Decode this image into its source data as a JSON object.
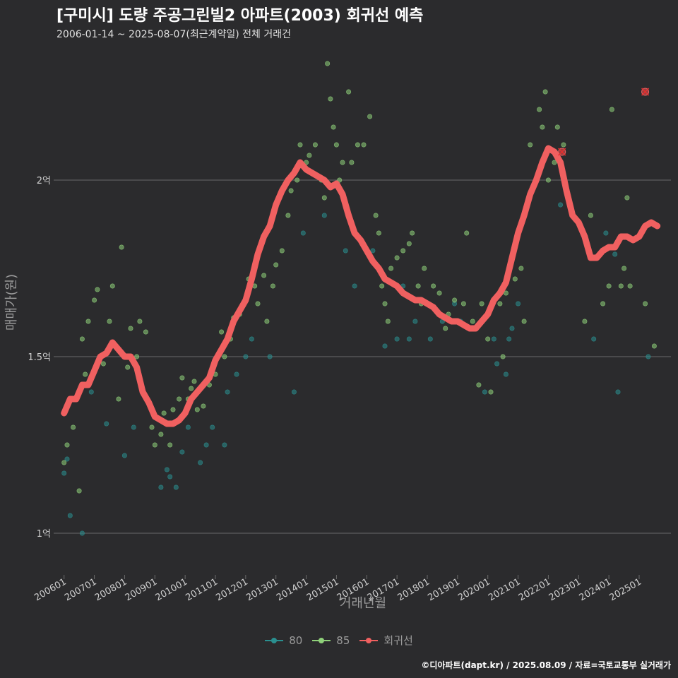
{
  "header": {
    "title": "[구미시] 도량 주공그린빌2 아파트(2003) 회귀선 예측",
    "subtitle": "2006-01-14 ~ 2025-08-07(최근계약일) 전체 거래건"
  },
  "footer": {
    "credit": "©디아파트(dapt.kr) / 2025.08.09 / 자료=국토교통부 실거래가"
  },
  "legend": {
    "items": [
      {
        "label": "80",
        "color": "#2a8f8f"
      },
      {
        "label": "85",
        "color": "#8fd17a"
      },
      {
        "label": "회귀선",
        "color": "#f06060"
      }
    ]
  },
  "colors": {
    "background": "#2b2b2d",
    "grid": "#6a6a6a",
    "axis_text": "#cfcfcf",
    "regression": "#f06060",
    "s80": "#2a8f8f",
    "s85": "#8fd17a",
    "outlier": "#e03030"
  },
  "chart_data": {
    "type": "scatter",
    "title": "[구미시] 도량 주공그린빌2 아파트(2003) 회귀선 예측",
    "xlabel": "거래년월",
    "ylabel": "매매가(원)",
    "xlim": [
      2005.75,
      2026.05
    ],
    "ylim": [
      0.93,
      2.35
    ],
    "x_ticks": [
      2006,
      2007,
      2008,
      2009,
      2010,
      2011,
      2012,
      2013,
      2014,
      2015,
      2016,
      2017,
      2018,
      2019,
      2020,
      2021,
      2022,
      2023,
      2024,
      2025
    ],
    "x_tick_labels": [
      "200601",
      "200701",
      "200801",
      "200901",
      "201001",
      "201101",
      "201201",
      "201301",
      "201401",
      "201501",
      "201601",
      "201701",
      "201801",
      "201901",
      "202001",
      "202101",
      "202201",
      "202301",
      "202401",
      "202501"
    ],
    "y_ticks": [
      1.0,
      1.5,
      2.0
    ],
    "y_tick_labels": [
      "1억",
      "1.5억",
      "2억"
    ],
    "grid": true,
    "legend_position": "bottom",
    "series": [
      {
        "name": "80",
        "points": [
          [
            2006.0,
            1.17
          ],
          [
            2006.1,
            1.21
          ],
          [
            2006.2,
            1.05
          ],
          [
            2006.6,
            1.0
          ],
          [
            2006.9,
            1.4
          ],
          [
            2007.4,
            1.31
          ],
          [
            2008.0,
            1.22
          ],
          [
            2008.3,
            1.3
          ],
          [
            2009.2,
            1.13
          ],
          [
            2009.4,
            1.18
          ],
          [
            2009.5,
            1.16
          ],
          [
            2009.7,
            1.13
          ],
          [
            2009.9,
            1.23
          ],
          [
            2010.1,
            1.3
          ],
          [
            2010.5,
            1.2
          ],
          [
            2010.7,
            1.25
          ],
          [
            2010.9,
            1.3
          ],
          [
            2011.3,
            1.25
          ],
          [
            2011.4,
            1.4
          ],
          [
            2011.7,
            1.45
          ],
          [
            2012.0,
            1.5
          ],
          [
            2012.2,
            1.55
          ],
          [
            2012.8,
            1.5
          ],
          [
            2013.6,
            1.4
          ],
          [
            2013.9,
            1.85
          ],
          [
            2014.6,
            1.9
          ],
          [
            2015.3,
            1.8
          ],
          [
            2015.6,
            1.7
          ],
          [
            2016.2,
            1.8
          ],
          [
            2016.6,
            1.53
          ],
          [
            2017.0,
            1.55
          ],
          [
            2017.2,
            1.7
          ],
          [
            2017.4,
            1.55
          ],
          [
            2017.6,
            1.6
          ],
          [
            2018.1,
            1.55
          ],
          [
            2018.5,
            1.6
          ],
          [
            2018.9,
            1.65
          ],
          [
            2019.1,
            1.6
          ],
          [
            2019.9,
            1.4
          ],
          [
            2020.2,
            1.55
          ],
          [
            2020.3,
            1.48
          ],
          [
            2020.6,
            1.45
          ],
          [
            2020.7,
            1.55
          ],
          [
            2020.8,
            1.58
          ],
          [
            2021.0,
            1.65
          ],
          [
            2022.4,
            1.93
          ],
          [
            2023.5,
            1.55
          ],
          [
            2023.9,
            1.85
          ],
          [
            2024.2,
            1.79
          ],
          [
            2024.3,
            1.4
          ],
          [
            2025.3,
            1.5
          ]
        ]
      },
      {
        "name": "85",
        "points": [
          [
            2006.0,
            1.2
          ],
          [
            2006.1,
            1.25
          ],
          [
            2006.3,
            1.3
          ],
          [
            2006.5,
            1.12
          ],
          [
            2006.6,
            1.55
          ],
          [
            2006.7,
            1.45
          ],
          [
            2006.8,
            1.6
          ],
          [
            2007.0,
            1.66
          ],
          [
            2007.1,
            1.69
          ],
          [
            2007.3,
            1.48
          ],
          [
            2007.5,
            1.6
          ],
          [
            2007.6,
            1.7
          ],
          [
            2007.8,
            1.38
          ],
          [
            2007.9,
            1.81
          ],
          [
            2008.1,
            1.47
          ],
          [
            2008.2,
            1.58
          ],
          [
            2008.4,
            1.5
          ],
          [
            2008.5,
            1.6
          ],
          [
            2008.7,
            1.57
          ],
          [
            2008.9,
            1.3
          ],
          [
            2009.0,
            1.25
          ],
          [
            2009.2,
            1.28
          ],
          [
            2009.3,
            1.34
          ],
          [
            2009.5,
            1.25
          ],
          [
            2009.6,
            1.35
          ],
          [
            2009.8,
            1.38
          ],
          [
            2009.9,
            1.44
          ],
          [
            2010.1,
            1.38
          ],
          [
            2010.2,
            1.41
          ],
          [
            2010.3,
            1.43
          ],
          [
            2010.4,
            1.35
          ],
          [
            2010.6,
            1.36
          ],
          [
            2010.8,
            1.42
          ],
          [
            2011.0,
            1.45
          ],
          [
            2011.2,
            1.57
          ],
          [
            2011.3,
            1.5
          ],
          [
            2011.5,
            1.55
          ],
          [
            2011.6,
            1.61
          ],
          [
            2011.8,
            1.62
          ],
          [
            2012.0,
            1.66
          ],
          [
            2012.1,
            1.72
          ],
          [
            2012.3,
            1.7
          ],
          [
            2012.4,
            1.65
          ],
          [
            2012.6,
            1.73
          ],
          [
            2012.7,
            1.6
          ],
          [
            2012.9,
            1.7
          ],
          [
            2013.0,
            1.76
          ],
          [
            2013.2,
            1.8
          ],
          [
            2013.4,
            1.9
          ],
          [
            2013.5,
            1.97
          ],
          [
            2013.7,
            2.0
          ],
          [
            2013.8,
            2.1
          ],
          [
            2014.0,
            2.05
          ],
          [
            2014.1,
            2.07
          ],
          [
            2014.3,
            2.1
          ],
          [
            2014.5,
            2.0
          ],
          [
            2014.6,
            1.95
          ],
          [
            2014.7,
            2.33
          ],
          [
            2014.8,
            2.23
          ],
          [
            2014.9,
            2.15
          ],
          [
            2015.0,
            2.1
          ],
          [
            2015.1,
            2.0
          ],
          [
            2015.2,
            2.05
          ],
          [
            2015.4,
            2.25
          ],
          [
            2015.5,
            2.05
          ],
          [
            2015.7,
            2.1
          ],
          [
            2015.9,
            2.1
          ],
          [
            2016.1,
            2.18
          ],
          [
            2016.3,
            1.9
          ],
          [
            2016.4,
            1.85
          ],
          [
            2016.5,
            1.7
          ],
          [
            2016.6,
            1.65
          ],
          [
            2016.7,
            1.6
          ],
          [
            2016.8,
            1.75
          ],
          [
            2017.0,
            1.78
          ],
          [
            2017.2,
            1.8
          ],
          [
            2017.4,
            1.82
          ],
          [
            2017.5,
            1.85
          ],
          [
            2017.7,
            1.7
          ],
          [
            2017.8,
            1.65
          ],
          [
            2017.9,
            1.75
          ],
          [
            2018.2,
            1.7
          ],
          [
            2018.4,
            1.68
          ],
          [
            2018.6,
            1.58
          ],
          [
            2018.7,
            1.62
          ],
          [
            2018.9,
            1.66
          ],
          [
            2019.2,
            1.65
          ],
          [
            2019.3,
            1.85
          ],
          [
            2019.5,
            1.6
          ],
          [
            2019.7,
            1.42
          ],
          [
            2019.8,
            1.65
          ],
          [
            2020.0,
            1.55
          ],
          [
            2020.1,
            1.4
          ],
          [
            2020.4,
            1.65
          ],
          [
            2020.5,
            1.5
          ],
          [
            2020.6,
            1.68
          ],
          [
            2020.9,
            1.72
          ],
          [
            2021.1,
            1.75
          ],
          [
            2021.2,
            1.6
          ],
          [
            2021.4,
            2.1
          ],
          [
            2021.6,
            2.0
          ],
          [
            2021.7,
            2.2
          ],
          [
            2021.8,
            2.15
          ],
          [
            2021.9,
            2.25
          ],
          [
            2022.0,
            2.0
          ],
          [
            2022.2,
            2.05
          ],
          [
            2022.3,
            2.15
          ],
          [
            2022.5,
            2.1
          ],
          [
            2022.8,
            1.9
          ],
          [
            2023.2,
            1.6
          ],
          [
            2023.4,
            1.9
          ],
          [
            2023.8,
            1.65
          ],
          [
            2024.0,
            1.7
          ],
          [
            2024.1,
            2.2
          ],
          [
            2024.4,
            1.7
          ],
          [
            2024.5,
            1.75
          ],
          [
            2024.6,
            1.95
          ],
          [
            2024.7,
            1.7
          ],
          [
            2025.2,
            1.65
          ],
          [
            2025.5,
            1.53
          ]
        ]
      }
    ],
    "regression": {
      "name": "회귀선",
      "points": [
        [
          2006.0,
          1.34
        ],
        [
          2006.2,
          1.38
        ],
        [
          2006.4,
          1.38
        ],
        [
          2006.6,
          1.42
        ],
        [
          2006.8,
          1.42
        ],
        [
          2007.0,
          1.46
        ],
        [
          2007.2,
          1.5
        ],
        [
          2007.4,
          1.51
        ],
        [
          2007.6,
          1.54
        ],
        [
          2007.8,
          1.52
        ],
        [
          2008.0,
          1.5
        ],
        [
          2008.2,
          1.5
        ],
        [
          2008.4,
          1.47
        ],
        [
          2008.6,
          1.4
        ],
        [
          2008.8,
          1.37
        ],
        [
          2009.0,
          1.33
        ],
        [
          2009.2,
          1.32
        ],
        [
          2009.4,
          1.31
        ],
        [
          2009.6,
          1.31
        ],
        [
          2009.8,
          1.32
        ],
        [
          2010.0,
          1.34
        ],
        [
          2010.2,
          1.38
        ],
        [
          2010.4,
          1.4
        ],
        [
          2010.6,
          1.42
        ],
        [
          2010.8,
          1.44
        ],
        [
          2011.0,
          1.49
        ],
        [
          2011.2,
          1.52
        ],
        [
          2011.4,
          1.55
        ],
        [
          2011.6,
          1.6
        ],
        [
          2011.8,
          1.63
        ],
        [
          2012.0,
          1.66
        ],
        [
          2012.2,
          1.72
        ],
        [
          2012.4,
          1.79
        ],
        [
          2012.6,
          1.84
        ],
        [
          2012.8,
          1.87
        ],
        [
          2013.0,
          1.93
        ],
        [
          2013.2,
          1.97
        ],
        [
          2013.4,
          2.0
        ],
        [
          2013.6,
          2.02
        ],
        [
          2013.8,
          2.05
        ],
        [
          2014.0,
          2.03
        ],
        [
          2014.2,
          2.02
        ],
        [
          2014.4,
          2.01
        ],
        [
          2014.6,
          2.0
        ],
        [
          2014.8,
          1.98
        ],
        [
          2015.0,
          1.99
        ],
        [
          2015.2,
          1.96
        ],
        [
          2015.4,
          1.9
        ],
        [
          2015.6,
          1.85
        ],
        [
          2015.8,
          1.83
        ],
        [
          2016.0,
          1.8
        ],
        [
          2016.2,
          1.77
        ],
        [
          2016.4,
          1.75
        ],
        [
          2016.6,
          1.72
        ],
        [
          2016.8,
          1.71
        ],
        [
          2017.0,
          1.7
        ],
        [
          2017.2,
          1.68
        ],
        [
          2017.4,
          1.67
        ],
        [
          2017.6,
          1.66
        ],
        [
          2017.8,
          1.66
        ],
        [
          2018.0,
          1.65
        ],
        [
          2018.2,
          1.64
        ],
        [
          2018.4,
          1.62
        ],
        [
          2018.6,
          1.61
        ],
        [
          2018.8,
          1.6
        ],
        [
          2019.0,
          1.6
        ],
        [
          2019.2,
          1.59
        ],
        [
          2019.4,
          1.58
        ],
        [
          2019.6,
          1.58
        ],
        [
          2019.8,
          1.6
        ],
        [
          2020.0,
          1.62
        ],
        [
          2020.2,
          1.66
        ],
        [
          2020.4,
          1.68
        ],
        [
          2020.6,
          1.71
        ],
        [
          2020.8,
          1.78
        ],
        [
          2021.0,
          1.85
        ],
        [
          2021.2,
          1.9
        ],
        [
          2021.4,
          1.96
        ],
        [
          2021.6,
          2.0
        ],
        [
          2021.8,
          2.05
        ],
        [
          2022.0,
          2.09
        ],
        [
          2022.2,
          2.08
        ],
        [
          2022.4,
          2.05
        ],
        [
          2022.6,
          1.97
        ],
        [
          2022.8,
          1.9
        ],
        [
          2023.0,
          1.88
        ],
        [
          2023.2,
          1.84
        ],
        [
          2023.4,
          1.78
        ],
        [
          2023.6,
          1.78
        ],
        [
          2023.8,
          1.8
        ],
        [
          2024.0,
          1.81
        ],
        [
          2024.2,
          1.81
        ],
        [
          2024.4,
          1.84
        ],
        [
          2024.6,
          1.84
        ],
        [
          2024.8,
          1.83
        ],
        [
          2025.0,
          1.84
        ],
        [
          2025.2,
          1.87
        ],
        [
          2025.4,
          1.88
        ],
        [
          2025.6,
          1.87
        ]
      ]
    },
    "outliers": [
      [
        2022.45,
        2.08
      ],
      [
        2025.2,
        2.25
      ]
    ]
  }
}
